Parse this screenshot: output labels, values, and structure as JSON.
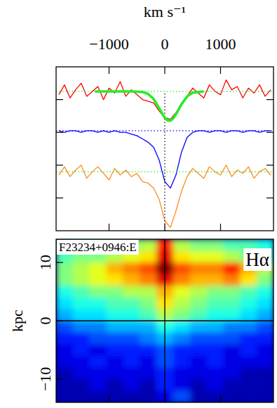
{
  "chart_data": [
    {
      "type": "line",
      "xlabel": "km s⁻¹",
      "xlim": [
        -1950,
        1950
      ],
      "xticks": [
        {
          "value": -1000,
          "label": "−1000"
        },
        0,
        1000
      ],
      "ylim": [
        0,
        10
      ],
      "yticks": [
        2,
        4,
        6,
        8
      ],
      "tick_labels": "x",
      "series": [
        {
          "color": "#ff0000",
          "line_style": "solid",
          "x": [
            -1900,
            -1800,
            -1700,
            -1600,
            -1500,
            -1400,
            -1300,
            -1200,
            -1100,
            -1000,
            -900,
            -800,
            -700,
            -600,
            -500,
            -400,
            -300,
            -200,
            -100,
            0,
            100,
            200,
            300,
            400,
            500,
            600,
            700,
            800,
            900,
            1000,
            1100,
            1200,
            1300,
            1400,
            1500,
            1600,
            1700,
            1800,
            1900
          ],
          "values": [
            8.3,
            8.9,
            8.1,
            8.6,
            9.0,
            8.2,
            8.5,
            8.8,
            8.0,
            8.7,
            8.4,
            9.1,
            8.2,
            8.6,
            8.3,
            8.0,
            7.9,
            7.8,
            7.3,
            6.9,
            6.8,
            7.2,
            7.7,
            8.2,
            8.7,
            8.4,
            8.1,
            8.9,
            8.5,
            8.3,
            9.2,
            8.6,
            8.8,
            8.1,
            8.7,
            8.4,
            8.9,
            8.2,
            8.6
          ]
        },
        {
          "color": "#0000ff",
          "line_style": "solid",
          "x": [
            -1900,
            -1800,
            -1700,
            -1600,
            -1500,
            -1400,
            -1300,
            -1200,
            -1100,
            -1000,
            -900,
            -800,
            -700,
            -600,
            -500,
            -400,
            -300,
            -200,
            -100,
            0,
            100,
            200,
            300,
            400,
            500,
            600,
            700,
            800,
            900,
            1000,
            1100,
            1200,
            1300,
            1400,
            1500,
            1600,
            1700,
            1800,
            1900
          ],
          "values": [
            6.1,
            6.0,
            6.1,
            6.1,
            6.0,
            6.1,
            6.1,
            6.0,
            6.1,
            6.0,
            6.1,
            6.0,
            6.0,
            5.9,
            5.8,
            5.6,
            5.4,
            5.1,
            4.3,
            3.0,
            2.6,
            3.4,
            4.8,
            5.7,
            6.0,
            6.1,
            6.1,
            6.0,
            6.1,
            6.1,
            6.0,
            6.1,
            6.1,
            6.0,
            6.1,
            6.1,
            6.0,
            6.1,
            6.1
          ]
        },
        {
          "color": "#ff8c1a",
          "line_style": "solid",
          "x": [
            -1900,
            -1800,
            -1700,
            -1600,
            -1500,
            -1400,
            -1300,
            -1200,
            -1100,
            -1000,
            -900,
            -800,
            -700,
            -600,
            -500,
            -400,
            -300,
            -200,
            -100,
            0,
            100,
            200,
            300,
            400,
            500,
            600,
            700,
            800,
            900,
            1000,
            1100,
            1200,
            1300,
            1400,
            1500,
            1600,
            1700,
            1800,
            1900
          ],
          "values": [
            3.4,
            3.9,
            3.3,
            3.7,
            4.0,
            3.2,
            3.6,
            3.9,
            3.5,
            3.1,
            3.8,
            3.4,
            3.7,
            3.3,
            3.5,
            3.0,
            2.9,
            2.6,
            1.9,
            0.6,
            0.2,
            1.2,
            2.4,
            3.3,
            3.8,
            3.5,
            3.2,
            3.9,
            3.6,
            3.4,
            4.0,
            3.3,
            3.7,
            3.5,
            3.9,
            3.2,
            3.6,
            3.8,
            3.4
          ]
        },
        {
          "color": "#22ee22",
          "line_style": "dotted",
          "x": [
            -1950,
            1950
          ],
          "values": [
            8.5,
            8.5
          ]
        },
        {
          "color": "#0000ff",
          "line_style": "dotted",
          "x": [
            -1950,
            1950
          ],
          "values": [
            6.1,
            6.1
          ]
        },
        {
          "color": "#22ee22",
          "line_style": "dotted",
          "x": [
            -1950,
            1950
          ],
          "values": [
            3.6,
            3.6
          ]
        },
        {
          "color": "#000000",
          "line_style": "dotted",
          "x": [
            0,
            0
          ],
          "values": [
            0,
            8.5
          ]
        },
        {
          "color": "#22ee22",
          "line_style": "thick",
          "x": [
            -1250,
            -600,
            -400,
            -300,
            -200,
            -100,
            0,
            50,
            100,
            150,
            200,
            300,
            400,
            500,
            700
          ],
          "values": [
            8.5,
            8.5,
            8.47,
            8.35,
            8.04,
            7.47,
            6.89,
            6.73,
            6.71,
            6.85,
            7.1,
            7.72,
            8.19,
            8.42,
            8.5
          ]
        }
      ]
    },
    {
      "type": "heatmap",
      "ylabel": "kpc",
      "annotations": [
        "F23234+0946:E",
        "Hα"
      ],
      "xlim": [
        -1950,
        1950
      ],
      "xticks": [
        {
          "value": -1000,
          "label": "−1000"
        },
        0,
        1000
      ],
      "ylim": [
        -14,
        14
      ],
      "yticks": [
        {
          "value": -10,
          "label": "−10"
        },
        0,
        10
      ],
      "tick_labels": "y",
      "zlim": [
        0,
        10
      ],
      "x": [
        -1800,
        -1500,
        -1200,
        -900,
        -600,
        -300,
        0,
        300,
        600,
        900,
        1200,
        1500,
        1800
      ],
      "y": [
        13,
        11,
        9,
        7,
        5,
        3,
        1,
        -1,
        -3,
        -5,
        -7,
        -9,
        -11,
        -13
      ],
      "cells": [
        [
          4,
          4.5,
          4.5,
          5,
          5,
          5.5,
          8.5,
          5.5,
          5,
          5,
          4.5,
          4.5,
          4
        ],
        [
          4.5,
          5,
          5,
          5.5,
          6,
          6.5,
          9,
          6.5,
          6,
          6,
          5.5,
          5,
          4.5
        ],
        [
          5,
          5.5,
          6,
          7,
          7.5,
          8,
          10,
          8,
          7.5,
          7.5,
          8.5,
          7,
          5.5
        ],
        [
          5,
          5.5,
          6,
          6.5,
          7,
          7.5,
          9,
          7.5,
          7,
          7,
          7.5,
          6.5,
          5
        ],
        [
          4,
          4.5,
          5,
          5,
          5.5,
          5.5,
          7,
          6,
          5.5,
          5,
          5,
          4.5,
          4
        ],
        [
          3.5,
          4,
          4,
          4.5,
          4.5,
          5,
          6.5,
          5.5,
          5,
          4.5,
          4.5,
          4,
          3.5
        ],
        [
          3,
          3.5,
          3.5,
          4,
          4,
          4.5,
          5.5,
          5,
          4.5,
          4,
          4,
          3.5,
          3
        ],
        [
          2,
          2.5,
          2.5,
          3,
          3,
          3,
          4,
          3.5,
          3,
          3,
          2.5,
          2.5,
          2
        ],
        [
          1.5,
          1.5,
          2,
          2,
          2,
          2.5,
          3,
          2.5,
          2,
          2,
          2,
          1.5,
          1.5
        ],
        [
          1,
          1.5,
          1,
          1.5,
          1.5,
          1.5,
          2,
          1.5,
          1.5,
          1.5,
          1,
          1.5,
          1
        ],
        [
          1,
          1,
          1.5,
          1,
          1.5,
          1,
          2,
          1.5,
          1,
          1.5,
          1,
          1,
          1
        ],
        [
          0.5,
          1,
          1,
          1,
          1,
          1,
          1.5,
          1,
          1,
          1,
          1,
          0.5,
          0.5
        ],
        [
          0.5,
          0.5,
          1,
          0.5,
          1,
          0.5,
          1.5,
          1,
          0.5,
          1,
          0.5,
          0.5,
          0.5
        ],
        [
          0.5,
          0.5,
          0.5,
          0.5,
          0.5,
          0.5,
          1,
          2,
          0.5,
          0.5,
          0.5,
          0.5,
          0.5
        ]
      ],
      "series": [
        {
          "color": "#000000",
          "line_style": "solid",
          "x": [
            -1950,
            1950
          ],
          "values": [
            0,
            0
          ]
        },
        {
          "color": "#000000",
          "line_style": "solid",
          "x": [
            0,
            0
          ],
          "values": [
            -14,
            14
          ]
        }
      ]
    }
  ]
}
